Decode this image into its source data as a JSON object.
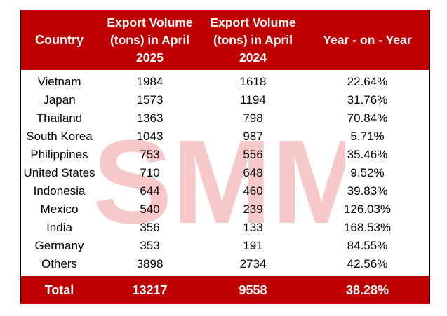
{
  "watermark": "SMM",
  "headers": {
    "country": "Country",
    "apr2025": [
      "Export Volume",
      "(tons) in April",
      "2025"
    ],
    "apr2024": [
      "Export Volume",
      "(tons) in April",
      "2024"
    ],
    "yoy": "Year - on - Year"
  },
  "rows": [
    {
      "country": "Vietnam",
      "apr2025": "1984",
      "apr2024": "1618",
      "yoy": "22.64%"
    },
    {
      "country": "Japan",
      "apr2025": "1573",
      "apr2024": "1194",
      "yoy": "31.76%"
    },
    {
      "country": "Thailand",
      "apr2025": "1363",
      "apr2024": "798",
      "yoy": "70.84%"
    },
    {
      "country": "South Korea",
      "apr2025": "1043",
      "apr2024": "987",
      "yoy": "5.71%"
    },
    {
      "country": "Philippines",
      "apr2025": "753",
      "apr2024": "556",
      "yoy": "35.46%"
    },
    {
      "country": "United States",
      "apr2025": "710",
      "apr2024": "648",
      "yoy": "9.52%"
    },
    {
      "country": "Indonesia",
      "apr2025": "644",
      "apr2024": "460",
      "yoy": "39.83%"
    },
    {
      "country": "Mexico",
      "apr2025": "540",
      "apr2024": "239",
      "yoy": "126.03%"
    },
    {
      "country": "India",
      "apr2025": "356",
      "apr2024": "133",
      "yoy": "168.53%"
    },
    {
      "country": "Germany",
      "apr2025": "353",
      "apr2024": "191",
      "yoy": "84.55%"
    },
    {
      "country": "Others",
      "apr2025": "3898",
      "apr2024": "2734",
      "yoy": "42.56%"
    }
  ],
  "total": {
    "label": "Total",
    "apr2025": "13217",
    "apr2024": "9558",
    "yoy": "38.28%"
  },
  "colors": {
    "header_bg": "#c00000",
    "header_text": "#ffffff",
    "watermark": "#f6c8c8"
  }
}
